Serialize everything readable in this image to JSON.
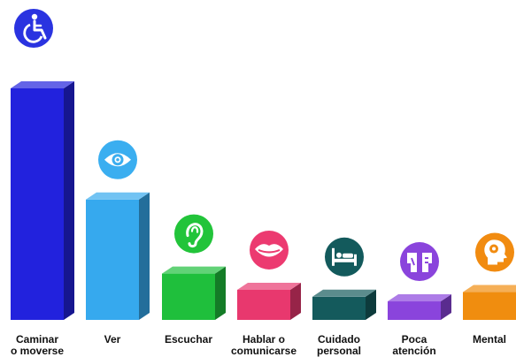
{
  "chart_data": {
    "type": "bar",
    "style": "3d-bars-with-icons",
    "title": "",
    "xlabel": "",
    "ylabel": "",
    "axis_visible": false,
    "grid": false,
    "legend": "none",
    "categories": [
      {
        "label": "Caminar o moverse",
        "lines": [
          "Caminar",
          "o moverse"
        ],
        "value": 100,
        "color": "#2222dd",
        "icon": "wheelchair-icon",
        "icon_color": "#2a33e0"
      },
      {
        "label": "Ver",
        "lines": [
          "Ver"
        ],
        "value": 52,
        "color": "#36a9ee",
        "icon": "eye-icon",
        "icon_color": "#3aaef0"
      },
      {
        "label": "Escuchar",
        "lines": [
          "Escuchar"
        ],
        "value": 20,
        "color": "#1fbf3c",
        "icon": "ear-icon",
        "icon_color": "#22c43a"
      },
      {
        "label": "Hablar o comunicarse",
        "lines": [
          "Hablar o",
          "comunicarse"
        ],
        "value": 13,
        "color": "#e8386e",
        "icon": "mouth-icon",
        "icon_color": "#ec3a70"
      },
      {
        "label": "Cuidado personal",
        "lines": [
          "Cuidado",
          "personal"
        ],
        "value": 10,
        "color": "#145a5c",
        "icon": "bed-icon",
        "icon_color": "#135a5c"
      },
      {
        "label": "Poca atención",
        "lines": [
          "Poca",
          "atención"
        ],
        "value": 8,
        "color": "#8a44dc",
        "icon": "attention-icon",
        "icon_color": "#8a44dc"
      },
      {
        "label": "Mental",
        "lines": [
          "Mental"
        ],
        "value": 12,
        "color": "#f08d0f",
        "icon": "head-icon",
        "icon_color": "#f18b10"
      }
    ],
    "values": [
      100,
      52,
      20,
      13,
      10,
      8,
      12
    ]
  }
}
